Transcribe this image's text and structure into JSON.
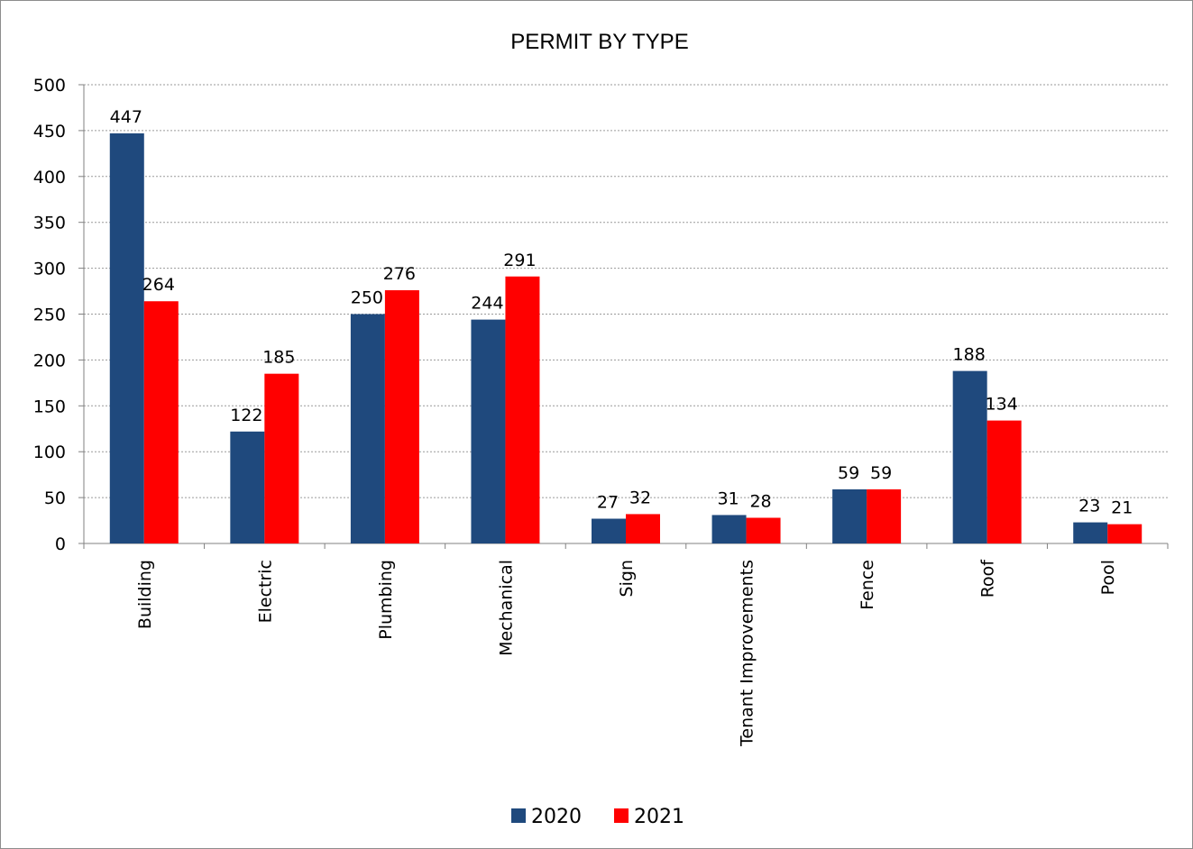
{
  "chart_data": {
    "type": "bar",
    "title": "PERMIT BY TYPE",
    "xlabel": "",
    "ylabel": "",
    "ylim": [
      0,
      500
    ],
    "yticks": [
      0,
      50,
      100,
      150,
      200,
      250,
      300,
      350,
      400,
      450,
      500
    ],
    "grid": true,
    "legend_position": "bottom",
    "categories": [
      "Building",
      "Electric",
      "Plumbing",
      "Mechanical",
      "Sign",
      "Tenant Improvements",
      "Fence",
      "Roof",
      "Pool"
    ],
    "series": [
      {
        "name": "2020",
        "color": "#1F497D",
        "values": [
          447,
          122,
          250,
          244,
          27,
          31,
          59,
          188,
          23
        ]
      },
      {
        "name": "2021",
        "color": "#FF0000",
        "values": [
          264,
          185,
          276,
          291,
          32,
          28,
          59,
          134,
          21
        ]
      }
    ]
  }
}
